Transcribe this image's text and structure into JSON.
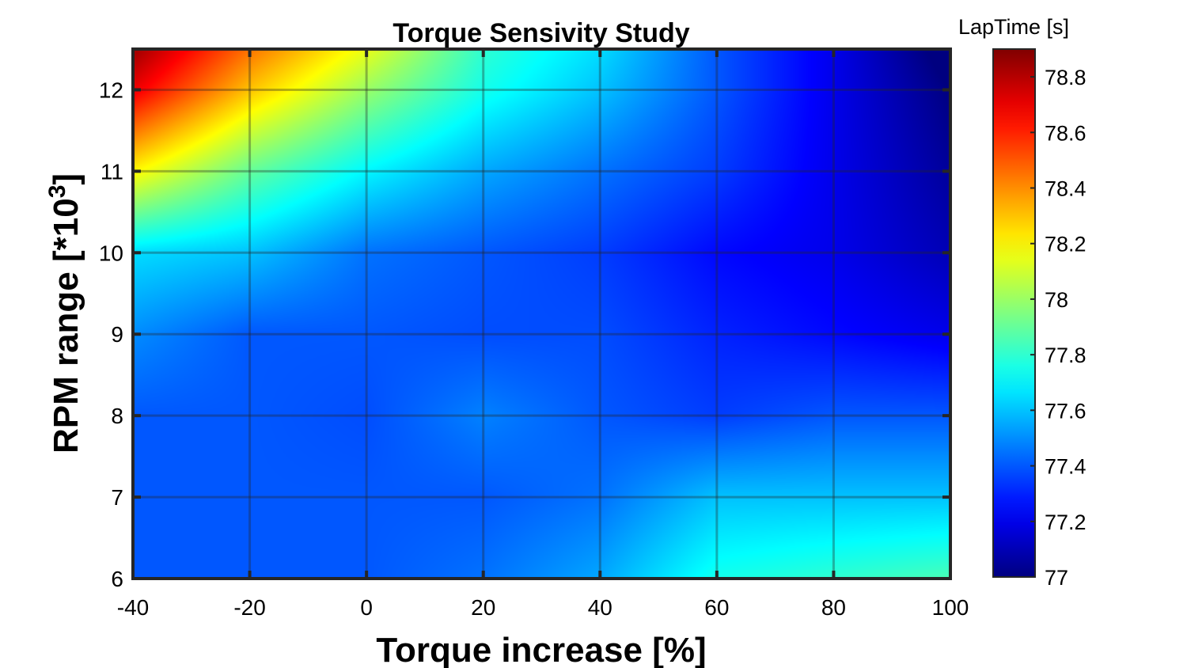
{
  "chart_data": {
    "type": "heatmap",
    "title": "Torque Sensivity Study",
    "xlabel": "Torque increase [%]",
    "ylabel_main": "RPM range [*10",
    "ylabel_sup": "3",
    "ylabel_end": "]",
    "xlim": [
      -40,
      100
    ],
    "ylim": [
      6,
      12.5
    ],
    "x_ticks": [
      -40,
      -20,
      0,
      20,
      40,
      60,
      80,
      100
    ],
    "y_ticks": [
      6,
      7,
      8,
      9,
      10,
      11,
      12
    ],
    "x": [
      -40,
      -20,
      0,
      20,
      40,
      60,
      80,
      100
    ],
    "y": [
      6,
      7,
      8,
      9,
      10,
      11,
      12,
      12.5
    ],
    "z": [
      [
        77.4,
        77.4,
        77.4,
        77.45,
        77.55,
        77.75,
        77.8,
        77.85
      ],
      [
        77.4,
        77.4,
        77.4,
        77.4,
        77.45,
        77.6,
        77.6,
        77.6
      ],
      [
        77.4,
        77.4,
        77.38,
        77.48,
        77.4,
        77.35,
        77.4,
        77.4
      ],
      [
        77.5,
        77.4,
        77.4,
        77.38,
        77.38,
        77.3,
        77.25,
        77.2
      ],
      [
        77.65,
        77.6,
        77.45,
        77.4,
        77.35,
        77.25,
        77.2,
        77.1
      ],
      [
        78.2,
        77.9,
        77.7,
        77.55,
        77.45,
        77.35,
        77.2,
        77.05
      ],
      [
        78.7,
        78.3,
        78.0,
        77.75,
        77.6,
        77.4,
        77.2,
        77.0
      ],
      [
        78.85,
        78.45,
        78.15,
        77.8,
        77.65,
        77.4,
        77.2,
        76.95
      ]
    ],
    "colorbar": {
      "title": "LapTime [s]",
      "min": 77,
      "max": 78.9,
      "ticks": [
        77,
        77.2,
        77.4,
        77.6,
        77.8,
        78,
        78.2,
        78.4,
        78.6,
        78.8
      ],
      "tick_labels": [
        "77",
        "77.2",
        "77.4",
        "77.6",
        "77.8",
        "78",
        "78.2",
        "78.4",
        "78.6",
        "78.8"
      ],
      "colormap": "jet"
    },
    "grid": true
  }
}
